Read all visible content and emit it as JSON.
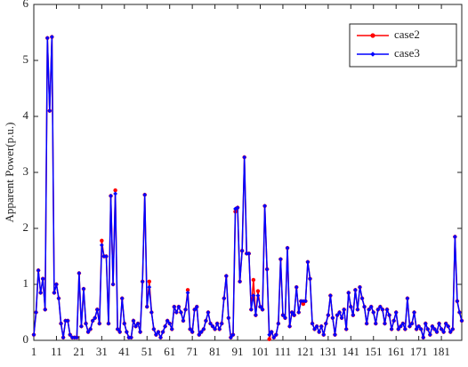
{
  "chart_data": {
    "type": "line",
    "ylabel": "Apparent Power(p.u.)",
    "x": [
      1,
      2,
      3,
      4,
      5,
      6,
      7,
      8,
      9,
      10,
      11,
      12,
      13,
      14,
      15,
      16,
      17,
      18,
      19,
      20,
      21,
      22,
      23,
      24,
      25,
      26,
      27,
      28,
      29,
      30,
      31,
      32,
      33,
      34,
      35,
      36,
      37,
      38,
      39,
      40,
      41,
      42,
      43,
      44,
      45,
      46,
      47,
      48,
      49,
      50,
      51,
      52,
      53,
      54,
      55,
      56,
      57,
      58,
      59,
      60,
      61,
      62,
      63,
      64,
      65,
      66,
      67,
      68,
      69,
      70,
      71,
      72,
      73,
      74,
      75,
      76,
      77,
      78,
      79,
      80,
      81,
      82,
      83,
      84,
      85,
      86,
      87,
      88,
      89,
      90,
      91,
      92,
      93,
      94,
      95,
      96,
      97,
      98,
      99,
      100,
      101,
      102,
      103,
      104,
      105,
      106,
      107,
      108,
      109,
      110,
      111,
      112,
      113,
      114,
      115,
      116,
      117,
      118,
      119,
      120,
      121,
      122,
      123,
      124,
      125,
      126,
      127,
      128,
      129,
      130,
      131,
      132,
      133,
      134,
      135,
      136,
      137,
      138,
      139,
      140,
      141,
      142,
      143,
      144,
      145,
      146,
      147,
      148,
      149,
      150,
      151,
      152,
      153,
      154,
      155,
      156,
      157,
      158,
      159,
      160,
      161,
      162,
      163,
      164,
      165,
      166,
      167,
      168,
      169,
      170,
      171,
      172,
      173,
      174,
      175,
      176,
      177,
      178,
      179,
      180,
      181,
      182,
      183,
      184,
      185,
      186,
      187,
      188,
      189,
      190
    ],
    "series": [
      {
        "name": "case2",
        "color": "#ff0000",
        "values": [
          0.1,
          0.5,
          1.25,
          0.85,
          1.1,
          0.55,
          5.4,
          4.1,
          5.42,
          0.85,
          1.0,
          0.75,
          0.3,
          0.05,
          0.35,
          0.35,
          0.1,
          0.05,
          0.05,
          0.05,
          1.2,
          0.25,
          0.92,
          0.3,
          0.15,
          0.2,
          0.35,
          0.4,
          0.55,
          0.3,
          1.78,
          1.5,
          1.5,
          0.3,
          2.58,
          1.0,
          2.68,
          0.2,
          0.15,
          0.75,
          0.3,
          0.15,
          0.05,
          0.05,
          0.35,
          0.25,
          0.3,
          0.15,
          1.05,
          2.6,
          0.6,
          1.05,
          0.5,
          0.2,
          0.1,
          0.15,
          0.05,
          0.15,
          0.25,
          0.35,
          0.3,
          0.2,
          0.6,
          0.5,
          0.6,
          0.5,
          0.35,
          0.55,
          0.9,
          0.2,
          0.15,
          0.55,
          0.6,
          0.1,
          0.15,
          0.2,
          0.35,
          0.5,
          0.3,
          0.25,
          0.2,
          0.3,
          0.2,
          0.3,
          0.75,
          1.15,
          0.4,
          0.05,
          0.1,
          2.3,
          2.37,
          1.05,
          1.6,
          3.27,
          1.55,
          1.55,
          0.55,
          1.08,
          0.45,
          0.88,
          0.6,
          0.55,
          2.4,
          1.27,
          0.02,
          0.15,
          0.05,
          0.1,
          0.3,
          1.45,
          0.45,
          0.4,
          1.65,
          0.25,
          0.5,
          0.45,
          0.95,
          0.5,
          0.7,
          0.65,
          0.7,
          1.4,
          1.1,
          0.3,
          0.2,
          0.25,
          0.15,
          0.25,
          0.1,
          0.3,
          0.45,
          0.8,
          0.4,
          0.1,
          0.45,
          0.5,
          0.4,
          0.55,
          0.2,
          0.85,
          0.6,
          0.45,
          0.9,
          0.55,
          0.95,
          0.75,
          0.6,
          0.3,
          0.55,
          0.6,
          0.5,
          0.3,
          0.55,
          0.6,
          0.55,
          0.3,
          0.55,
          0.45,
          0.2,
          0.35,
          0.5,
          0.2,
          0.25,
          0.3,
          0.2,
          0.75,
          0.25,
          0.3,
          0.5,
          0.2,
          0.25,
          0.2,
          0.05,
          0.3,
          0.2,
          0.1,
          0.25,
          0.2,
          0.15,
          0.3,
          0.2,
          0.15,
          0.3,
          0.25,
          0.15,
          0.2,
          1.85,
          0.7,
          0.5,
          0.35
        ]
      },
      {
        "name": "case3",
        "color": "#0000ff",
        "values": [
          0.1,
          0.5,
          1.25,
          0.85,
          1.1,
          0.55,
          5.4,
          4.1,
          5.42,
          0.85,
          1.0,
          0.75,
          0.3,
          0.05,
          0.35,
          0.35,
          0.1,
          0.05,
          0.05,
          0.05,
          1.2,
          0.25,
          0.92,
          0.3,
          0.15,
          0.2,
          0.35,
          0.4,
          0.55,
          0.3,
          1.7,
          1.5,
          1.5,
          0.3,
          2.58,
          1.0,
          2.62,
          0.2,
          0.15,
          0.75,
          0.3,
          0.15,
          0.05,
          0.05,
          0.35,
          0.25,
          0.3,
          0.15,
          1.05,
          2.6,
          0.6,
          0.95,
          0.5,
          0.2,
          0.1,
          0.15,
          0.05,
          0.15,
          0.25,
          0.35,
          0.3,
          0.2,
          0.6,
          0.5,
          0.6,
          0.5,
          0.35,
          0.55,
          0.85,
          0.2,
          0.15,
          0.55,
          0.6,
          0.1,
          0.15,
          0.2,
          0.35,
          0.5,
          0.3,
          0.25,
          0.2,
          0.3,
          0.2,
          0.3,
          0.75,
          1.15,
          0.4,
          0.05,
          0.1,
          2.35,
          2.37,
          1.05,
          1.6,
          3.27,
          1.55,
          1.55,
          0.55,
          0.8,
          0.45,
          0.8,
          0.6,
          0.55,
          2.4,
          1.27,
          0.1,
          0.15,
          0.05,
          0.1,
          0.3,
          1.45,
          0.45,
          0.4,
          1.65,
          0.25,
          0.5,
          0.45,
          0.95,
          0.5,
          0.7,
          0.7,
          0.7,
          1.4,
          1.1,
          0.3,
          0.2,
          0.25,
          0.15,
          0.25,
          0.1,
          0.3,
          0.45,
          0.8,
          0.4,
          0.1,
          0.45,
          0.5,
          0.4,
          0.55,
          0.2,
          0.85,
          0.6,
          0.45,
          0.9,
          0.55,
          0.95,
          0.75,
          0.6,
          0.3,
          0.55,
          0.6,
          0.5,
          0.3,
          0.55,
          0.6,
          0.55,
          0.3,
          0.55,
          0.45,
          0.2,
          0.35,
          0.5,
          0.2,
          0.25,
          0.3,
          0.2,
          0.75,
          0.25,
          0.3,
          0.5,
          0.2,
          0.25,
          0.2,
          0.05,
          0.3,
          0.2,
          0.1,
          0.25,
          0.2,
          0.15,
          0.3,
          0.2,
          0.15,
          0.3,
          0.25,
          0.15,
          0.2,
          1.85,
          0.7,
          0.5,
          0.35
        ]
      }
    ],
    "xlim": [
      1,
      190
    ],
    "xticks": [
      1,
      11,
      21,
      31,
      41,
      51,
      61,
      71,
      81,
      91,
      101,
      111,
      121,
      131,
      141,
      151,
      161,
      171,
      181
    ],
    "ylim": [
      0,
      6
    ],
    "yticks": [
      0,
      1,
      2,
      3,
      4,
      5,
      6
    ],
    "legend": "upper right"
  }
}
